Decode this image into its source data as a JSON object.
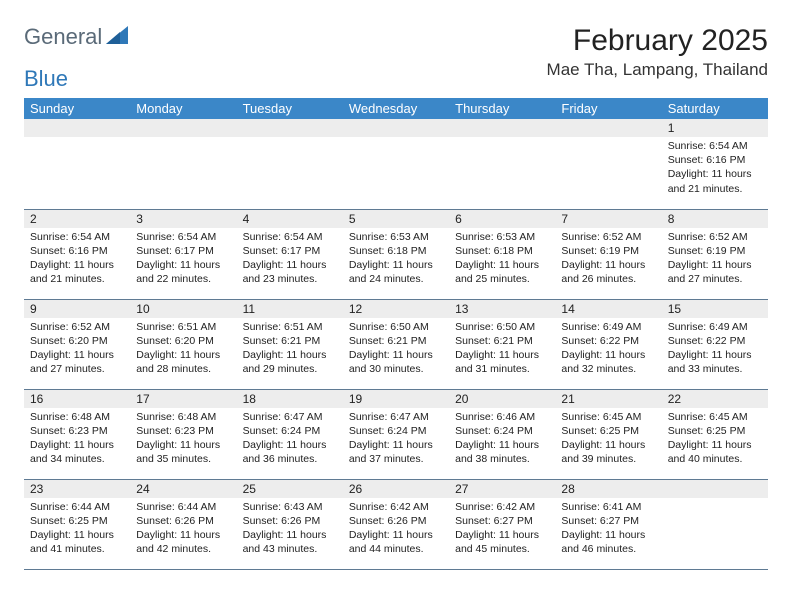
{
  "logo": {
    "word1": "General",
    "word2": "Blue"
  },
  "title": "February 2025",
  "location": "Mae Tha, Lampang, Thailand",
  "colors": {
    "header_bg": "#3b87c8",
    "header_text": "#ffffff",
    "daynum_bg": "#ededed",
    "border": "#5f7a93",
    "logo_gray": "#5a6a78",
    "logo_blue": "#2f78b8"
  },
  "weekdays": [
    "Sunday",
    "Monday",
    "Tuesday",
    "Wednesday",
    "Thursday",
    "Friday",
    "Saturday"
  ],
  "labels": {
    "sunrise": "Sunrise:",
    "sunset": "Sunset:",
    "daylight": "Daylight:"
  },
  "weeks": [
    [
      null,
      null,
      null,
      null,
      null,
      null,
      {
        "d": "1",
        "sr": "6:54 AM",
        "ss": "6:16 PM",
        "dl": "11 hours and 21 minutes."
      }
    ],
    [
      {
        "d": "2",
        "sr": "6:54 AM",
        "ss": "6:16 PM",
        "dl": "11 hours and 21 minutes."
      },
      {
        "d": "3",
        "sr": "6:54 AM",
        "ss": "6:17 PM",
        "dl": "11 hours and 22 minutes."
      },
      {
        "d": "4",
        "sr": "6:54 AM",
        "ss": "6:17 PM",
        "dl": "11 hours and 23 minutes."
      },
      {
        "d": "5",
        "sr": "6:53 AM",
        "ss": "6:18 PM",
        "dl": "11 hours and 24 minutes."
      },
      {
        "d": "6",
        "sr": "6:53 AM",
        "ss": "6:18 PM",
        "dl": "11 hours and 25 minutes."
      },
      {
        "d": "7",
        "sr": "6:52 AM",
        "ss": "6:19 PM",
        "dl": "11 hours and 26 minutes."
      },
      {
        "d": "8",
        "sr": "6:52 AM",
        "ss": "6:19 PM",
        "dl": "11 hours and 27 minutes."
      }
    ],
    [
      {
        "d": "9",
        "sr": "6:52 AM",
        "ss": "6:20 PM",
        "dl": "11 hours and 27 minutes."
      },
      {
        "d": "10",
        "sr": "6:51 AM",
        "ss": "6:20 PM",
        "dl": "11 hours and 28 minutes."
      },
      {
        "d": "11",
        "sr": "6:51 AM",
        "ss": "6:21 PM",
        "dl": "11 hours and 29 minutes."
      },
      {
        "d": "12",
        "sr": "6:50 AM",
        "ss": "6:21 PM",
        "dl": "11 hours and 30 minutes."
      },
      {
        "d": "13",
        "sr": "6:50 AM",
        "ss": "6:21 PM",
        "dl": "11 hours and 31 minutes."
      },
      {
        "d": "14",
        "sr": "6:49 AM",
        "ss": "6:22 PM",
        "dl": "11 hours and 32 minutes."
      },
      {
        "d": "15",
        "sr": "6:49 AM",
        "ss": "6:22 PM",
        "dl": "11 hours and 33 minutes."
      }
    ],
    [
      {
        "d": "16",
        "sr": "6:48 AM",
        "ss": "6:23 PM",
        "dl": "11 hours and 34 minutes."
      },
      {
        "d": "17",
        "sr": "6:48 AM",
        "ss": "6:23 PM",
        "dl": "11 hours and 35 minutes."
      },
      {
        "d": "18",
        "sr": "6:47 AM",
        "ss": "6:24 PM",
        "dl": "11 hours and 36 minutes."
      },
      {
        "d": "19",
        "sr": "6:47 AM",
        "ss": "6:24 PM",
        "dl": "11 hours and 37 minutes."
      },
      {
        "d": "20",
        "sr": "6:46 AM",
        "ss": "6:24 PM",
        "dl": "11 hours and 38 minutes."
      },
      {
        "d": "21",
        "sr": "6:45 AM",
        "ss": "6:25 PM",
        "dl": "11 hours and 39 minutes."
      },
      {
        "d": "22",
        "sr": "6:45 AM",
        "ss": "6:25 PM",
        "dl": "11 hours and 40 minutes."
      }
    ],
    [
      {
        "d": "23",
        "sr": "6:44 AM",
        "ss": "6:25 PM",
        "dl": "11 hours and 41 minutes."
      },
      {
        "d": "24",
        "sr": "6:44 AM",
        "ss": "6:26 PM",
        "dl": "11 hours and 42 minutes."
      },
      {
        "d": "25",
        "sr": "6:43 AM",
        "ss": "6:26 PM",
        "dl": "11 hours and 43 minutes."
      },
      {
        "d": "26",
        "sr": "6:42 AM",
        "ss": "6:26 PM",
        "dl": "11 hours and 44 minutes."
      },
      {
        "d": "27",
        "sr": "6:42 AM",
        "ss": "6:27 PM",
        "dl": "11 hours and 45 minutes."
      },
      {
        "d": "28",
        "sr": "6:41 AM",
        "ss": "6:27 PM",
        "dl": "11 hours and 46 minutes."
      },
      null
    ]
  ]
}
